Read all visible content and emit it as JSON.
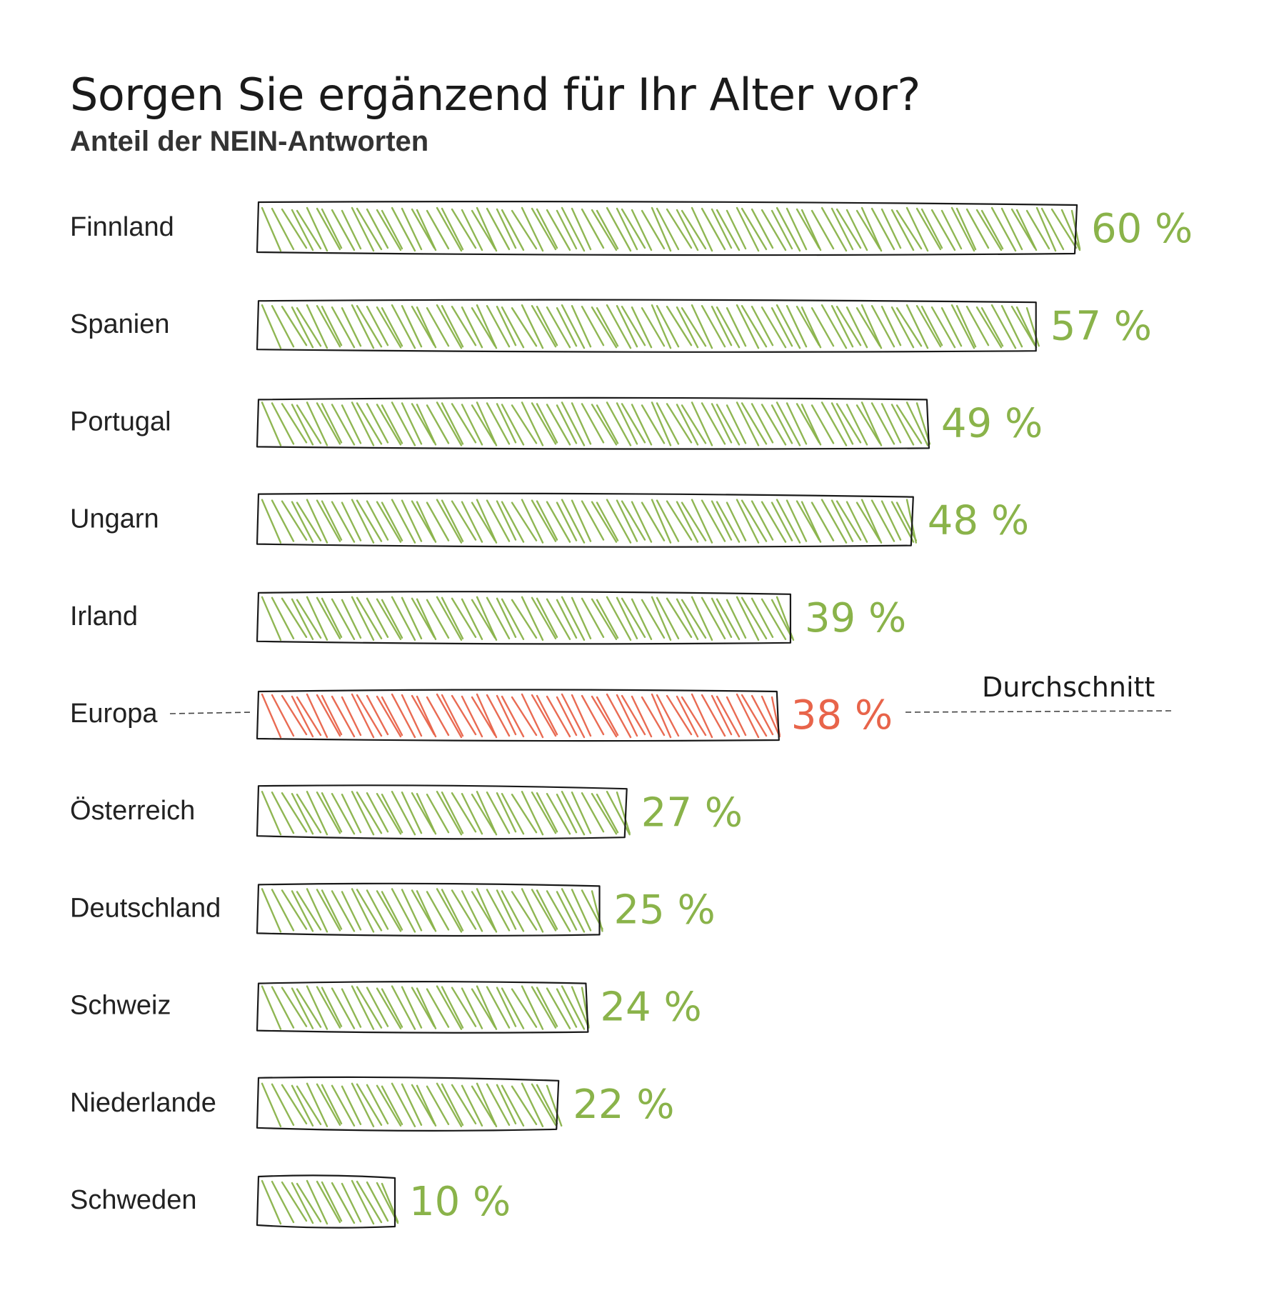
{
  "colors": {
    "bar": "#8ab34a",
    "highlight": "#e8644a",
    "outline": "#1a1a1a",
    "text": "#222222"
  },
  "chart_data": {
    "type": "bar",
    "orientation": "horizontal",
    "title": "Sorgen Sie ergänzend für Ihr Alter vor?",
    "subtitle": "Anteil der NEIN-Antworten",
    "categories": [
      "Finnland",
      "Spanien",
      "Portugal",
      "Ungarn",
      "Irland",
      "Europa",
      "Österreich",
      "Deutschland",
      "Schweiz",
      "Niederlande",
      "Schweden"
    ],
    "values": [
      60,
      57,
      49,
      48,
      39,
      38,
      27,
      25,
      24,
      22,
      10
    ],
    "value_labels": [
      "60 %",
      "57 %",
      "49 %",
      "48 %",
      "39 %",
      "38 %",
      "27 %",
      "25 %",
      "24 %",
      "22 %",
      "10 %"
    ],
    "highlight_category": "Europa",
    "average_annotation": "Durchschnitt",
    "xlim": [
      0,
      60
    ],
    "grid": false,
    "legend": "none"
  }
}
